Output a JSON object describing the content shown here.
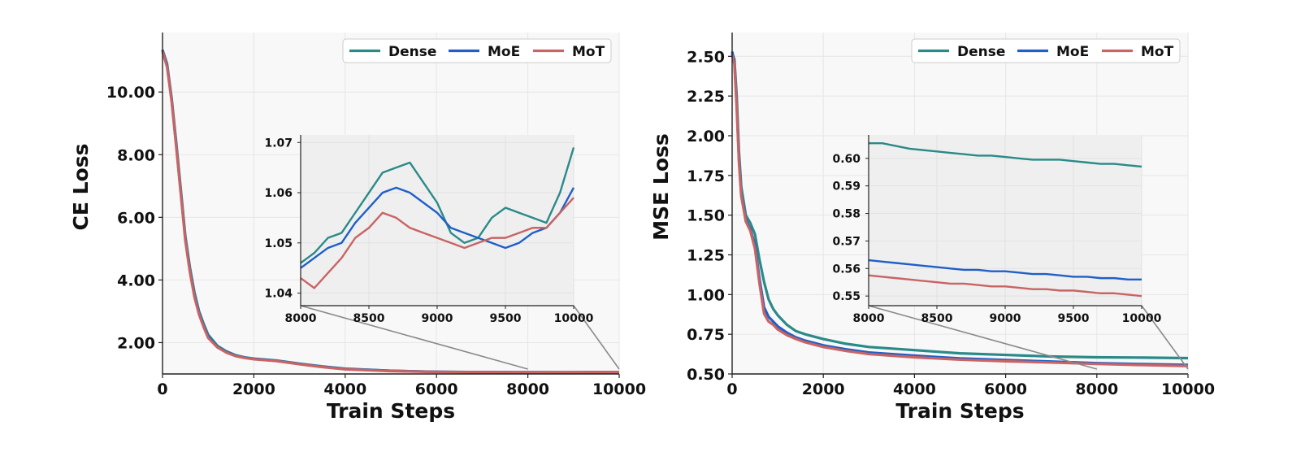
{
  "chart_data": [
    {
      "type": "line",
      "xlabel": "Train Steps",
      "ylabel": "CE Loss",
      "xlim": [
        0,
        10000
      ],
      "ylim": [
        1.0,
        11.9
      ],
      "xticks": [
        0,
        2000,
        4000,
        6000,
        8000,
        10000
      ],
      "xtick_labels": [
        "0",
        "2000",
        "4000",
        "6000",
        "8000",
        "10000"
      ],
      "yticks": [
        2,
        4,
        6,
        8,
        10
      ],
      "ytick_labels": [
        "2.00",
        "4.00",
        "6.00",
        "8.00",
        "10.00"
      ],
      "grid": true,
      "legend": "top-right",
      "x": [
        0,
        100,
        200,
        300,
        400,
        500,
        600,
        700,
        800,
        900,
        1000,
        1200,
        1400,
        1600,
        1800,
        2000,
        2500,
        3000,
        3500,
        4000,
        5000,
        6000,
        7000,
        8000,
        9000,
        10000
      ],
      "series": [
        {
          "name": "Dense",
          "color": "#2a8a88",
          "values": [
            11.35,
            10.9,
            9.8,
            8.4,
            6.9,
            5.4,
            4.4,
            3.6,
            3.0,
            2.6,
            2.25,
            1.9,
            1.72,
            1.6,
            1.53,
            1.49,
            1.43,
            1.33,
            1.24,
            1.17,
            1.1,
            1.07,
            1.06,
            1.055,
            1.055,
            1.06
          ]
        },
        {
          "name": "MoE",
          "color": "#1f5fc7",
          "values": [
            11.33,
            10.85,
            9.75,
            8.3,
            6.8,
            5.3,
            4.3,
            3.5,
            2.95,
            2.55,
            2.2,
            1.87,
            1.7,
            1.58,
            1.52,
            1.48,
            1.42,
            1.32,
            1.23,
            1.16,
            1.1,
            1.07,
            1.06,
            1.055,
            1.054,
            1.06
          ]
        },
        {
          "name": "MoT",
          "color": "#c86464",
          "values": [
            11.3,
            10.8,
            9.7,
            8.25,
            6.75,
            5.25,
            4.25,
            3.45,
            2.9,
            2.5,
            2.15,
            1.85,
            1.68,
            1.57,
            1.51,
            1.47,
            1.41,
            1.31,
            1.22,
            1.15,
            1.09,
            1.065,
            1.055,
            1.05,
            1.052,
            1.058
          ]
        }
      ],
      "inset": {
        "xlim": [
          8000,
          10000
        ],
        "ylim": [
          1.0375,
          1.0715
        ],
        "xticks": [
          8000,
          8500,
          9000,
          9500,
          10000
        ],
        "xtick_labels": [
          "8000",
          "8500",
          "9000",
          "9500",
          "10000"
        ],
        "yticks": [
          1.04,
          1.05,
          1.06,
          1.07
        ],
        "ytick_labels": [
          "1.04",
          "1.05",
          "1.06",
          "1.07"
        ],
        "x": [
          8000,
          8100,
          8200,
          8300,
          8400,
          8500,
          8600,
          8700,
          8800,
          8900,
          9000,
          9100,
          9200,
          9300,
          9400,
          9500,
          9600,
          9700,
          9800,
          9900,
          10000
        ],
        "series": [
          {
            "name": "Dense",
            "values": [
              1.046,
              1.048,
              1.051,
              1.052,
              1.056,
              1.06,
              1.064,
              1.065,
              1.066,
              1.062,
              1.058,
              1.052,
              1.05,
              1.051,
              1.055,
              1.057,
              1.056,
              1.055,
              1.054,
              1.06,
              1.069
            ]
          },
          {
            "name": "MoE",
            "values": [
              1.045,
              1.047,
              1.049,
              1.05,
              1.054,
              1.057,
              1.06,
              1.061,
              1.06,
              1.058,
              1.056,
              1.053,
              1.052,
              1.051,
              1.05,
              1.049,
              1.05,
              1.052,
              1.053,
              1.056,
              1.061
            ]
          },
          {
            "name": "MoT",
            "values": [
              1.043,
              1.041,
              1.044,
              1.047,
              1.051,
              1.053,
              1.056,
              1.055,
              1.053,
              1.052,
              1.051,
              1.05,
              1.049,
              1.05,
              1.051,
              1.051,
              1.052,
              1.053,
              1.053,
              1.056,
              1.059
            ]
          }
        ]
      }
    },
    {
      "type": "line",
      "xlabel": "Train Steps",
      "ylabel": "MSE Loss",
      "xlim": [
        0,
        10000
      ],
      "ylim": [
        0.5,
        2.65
      ],
      "xticks": [
        0,
        2000,
        4000,
        6000,
        8000,
        10000
      ],
      "xtick_labels": [
        "0",
        "2000",
        "4000",
        "6000",
        "8000",
        "10000"
      ],
      "yticks": [
        0.5,
        0.75,
        1.0,
        1.25,
        1.5,
        1.75,
        2.0,
        2.25,
        2.5
      ],
      "ytick_labels": [
        "0.50",
        "0.75",
        "1.00",
        "1.25",
        "1.50",
        "1.75",
        "2.00",
        "2.25",
        "2.50"
      ],
      "grid": true,
      "legend": "top-right",
      "x": [
        0,
        50,
        100,
        150,
        200,
        300,
        400,
        500,
        600,
        700,
        800,
        900,
        1000,
        1200,
        1400,
        1600,
        2000,
        2500,
        3000,
        4000,
        5000,
        6000,
        7000,
        8000,
        9000,
        10000
      ],
      "series": [
        {
          "name": "Dense",
          "color": "#2a8a88",
          "values": [
            2.52,
            2.48,
            2.25,
            1.9,
            1.68,
            1.5,
            1.45,
            1.38,
            1.22,
            1.08,
            0.97,
            0.91,
            0.87,
            0.81,
            0.77,
            0.75,
            0.72,
            0.69,
            0.67,
            0.65,
            0.63,
            0.62,
            0.61,
            0.605,
            0.603,
            0.6
          ]
        },
        {
          "name": "MoE",
          "color": "#1f5fc7",
          "values": [
            2.53,
            2.47,
            2.2,
            1.85,
            1.63,
            1.47,
            1.41,
            1.31,
            1.1,
            0.92,
            0.86,
            0.83,
            0.8,
            0.76,
            0.73,
            0.71,
            0.68,
            0.655,
            0.635,
            0.615,
            0.598,
            0.588,
            0.578,
            0.568,
            0.562,
            0.557
          ]
        },
        {
          "name": "MoT",
          "color": "#c86464",
          "values": [
            2.51,
            2.45,
            2.18,
            1.83,
            1.62,
            1.46,
            1.4,
            1.29,
            1.07,
            0.88,
            0.83,
            0.81,
            0.78,
            0.745,
            0.72,
            0.7,
            0.67,
            0.645,
            0.625,
            0.605,
            0.59,
            0.58,
            0.572,
            0.563,
            0.556,
            0.55
          ]
        }
      ],
      "inset": {
        "xlim": [
          8000,
          10000
        ],
        "ylim": [
          0.5465,
          0.6085
        ],
        "xticks": [
          8000,
          8500,
          9000,
          9500,
          10000
        ],
        "xtick_labels": [
          "8000",
          "8500",
          "9000",
          "9500",
          "10000"
        ],
        "yticks": [
          0.55,
          0.56,
          0.57,
          0.58,
          0.59,
          0.6
        ],
        "ytick_labels": [
          "0.55",
          "0.56",
          "0.57",
          "0.58",
          "0.59",
          "0.60"
        ],
        "x": [
          8000,
          8100,
          8200,
          8300,
          8400,
          8500,
          8600,
          8700,
          8800,
          8900,
          9000,
          9100,
          9200,
          9300,
          9400,
          9500,
          9600,
          9700,
          9800,
          9900,
          10000
        ],
        "series": [
          {
            "name": "Dense",
            "values": [
              0.6055,
              0.6055,
              0.6045,
              0.6035,
              0.603,
              0.6025,
              0.602,
              0.6015,
              0.601,
              0.601,
              0.6005,
              0.6,
              0.5995,
              0.5995,
              0.5995,
              0.599,
              0.5985,
              0.598,
              0.598,
              0.5975,
              0.597
            ]
          },
          {
            "name": "MoE",
            "values": [
              0.563,
              0.5625,
              0.562,
              0.5615,
              0.561,
              0.5605,
              0.56,
              0.5595,
              0.5595,
              0.559,
              0.559,
              0.5585,
              0.558,
              0.558,
              0.5575,
              0.557,
              0.557,
              0.5565,
              0.5565,
              0.556,
              0.556
            ]
          },
          {
            "name": "MoT",
            "values": [
              0.5575,
              0.557,
              0.5565,
              0.556,
              0.5555,
              0.555,
              0.5545,
              0.5545,
              0.554,
              0.5535,
              0.5535,
              0.553,
              0.5525,
              0.5525,
              0.552,
              0.552,
              0.5515,
              0.551,
              0.551,
              0.5505,
              0.55
            ]
          }
        ]
      }
    }
  ]
}
